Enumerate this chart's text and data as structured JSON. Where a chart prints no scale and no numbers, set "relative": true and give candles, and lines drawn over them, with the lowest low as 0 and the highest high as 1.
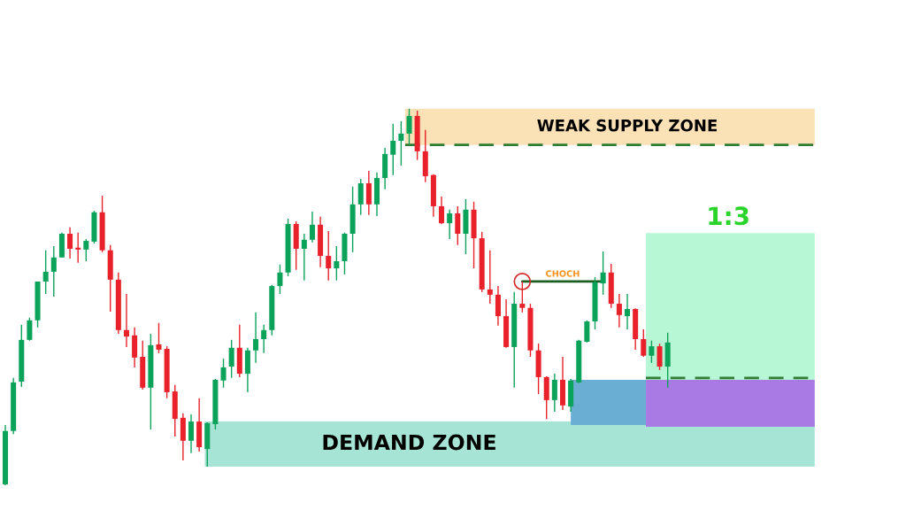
{
  "chart_data": {
    "type": "candlestick",
    "relative": true,
    "categories": [
      null,
      null,
      null,
      null,
      null,
      null,
      null,
      null,
      null,
      null,
      null,
      null,
      null,
      null,
      null,
      null,
      null,
      null,
      null,
      null,
      null,
      null,
      null,
      null,
      null,
      null,
      null,
      null,
      null,
      null,
      null,
      null,
      null,
      null,
      null,
      null,
      null,
      null,
      null,
      null,
      null,
      null,
      null,
      null,
      null,
      null,
      null,
      null,
      null,
      null,
      null,
      null,
      null,
      null,
      null,
      null,
      null,
      null,
      null,
      null,
      null,
      null,
      null,
      null,
      null,
      null,
      null,
      null,
      null,
      null,
      null,
      null,
      null,
      null,
      null,
      null,
      null,
      null,
      null,
      null,
      null,
      null,
      null,
      null,
      null,
      null,
      null,
      null,
      null,
      null,
      null,
      null,
      null,
      null,
      null,
      null,
      null,
      null,
      null,
      null,
      null
    ],
    "ohlc": [
      [
        0.002,
        0.16,
        0.0,
        0.144
      ],
      [
        0.144,
        0.285,
        0.136,
        0.273
      ],
      [
        0.275,
        0.426,
        0.261,
        0.386
      ],
      [
        0.386,
        0.445,
        0.384,
        0.438
      ],
      [
        0.438,
        0.541,
        0.419,
        0.541
      ],
      [
        0.541,
        0.624,
        0.508,
        0.567
      ],
      [
        0.567,
        0.635,
        0.501,
        0.605
      ],
      [
        0.605,
        0.671,
        0.605,
        0.668
      ],
      [
        0.668,
        0.685,
        0.602,
        0.628
      ],
      [
        0.631,
        0.671,
        0.591,
        0.626
      ],
      [
        0.626,
        0.654,
        0.595,
        0.649
      ],
      [
        0.647,
        0.729,
        0.642,
        0.725
      ],
      [
        0.725,
        0.769,
        0.619,
        0.624
      ],
      [
        0.624,
        0.638,
        0.461,
        0.546
      ],
      [
        0.546,
        0.565,
        0.402,
        0.412
      ],
      [
        0.412,
        0.508,
        0.367,
        0.395
      ],
      [
        0.398,
        0.419,
        0.313,
        0.339
      ],
      [
        0.341,
        0.384,
        0.254,
        0.259
      ],
      [
        0.259,
        0.402,
        0.148,
        0.372
      ],
      [
        0.374,
        0.431,
        0.351,
        0.36
      ],
      [
        0.362,
        0.369,
        0.231,
        0.247
      ],
      [
        0.249,
        0.266,
        0.129,
        0.176
      ],
      [
        0.179,
        0.191,
        0.066,
        0.118
      ],
      [
        0.118,
        0.188,
        0.085,
        0.169
      ],
      [
        0.169,
        0.231,
        0.089,
        0.101
      ],
      [
        0.096,
        0.167,
        0.049,
        0.165
      ],
      [
        0.162,
        0.282,
        0.148,
        0.28
      ],
      [
        0.278,
        0.336,
        0.259,
        0.313
      ],
      [
        0.315,
        0.386,
        0.285,
        0.365
      ],
      [
        0.365,
        0.426,
        0.287,
        0.296
      ],
      [
        0.296,
        0.365,
        0.247,
        0.358
      ],
      [
        0.358,
        0.459,
        0.325,
        0.388
      ],
      [
        0.388,
        0.426,
        0.351,
        0.412
      ],
      [
        0.412,
        0.532,
        0.398,
        0.529
      ],
      [
        0.529,
        0.586,
        0.508,
        0.565
      ],
      [
        0.565,
        0.708,
        0.555,
        0.694
      ],
      [
        0.694,
        0.701,
        0.572,
        0.628
      ],
      [
        0.628,
        0.668,
        0.544,
        0.652
      ],
      [
        0.652,
        0.727,
        0.645,
        0.692
      ],
      [
        0.692,
        0.713,
        0.579,
        0.609
      ],
      [
        0.609,
        0.675,
        0.544,
        0.576
      ],
      [
        0.576,
        0.635,
        0.544,
        0.595
      ],
      [
        0.595,
        0.671,
        0.56,
        0.668
      ],
      [
        0.668,
        0.793,
        0.619,
        0.746
      ],
      [
        0.746,
        0.814,
        0.718,
        0.802
      ],
      [
        0.802,
        0.835,
        0.718,
        0.746
      ],
      [
        0.746,
        0.831,
        0.715,
        0.816
      ],
      [
        0.816,
        0.896,
        0.786,
        0.88
      ],
      [
        0.878,
        0.96,
        0.824,
        0.915
      ],
      [
        0.915,
        0.967,
        0.849,
        0.934
      ],
      [
        0.934,
        1.0,
        0.906,
        0.981
      ],
      [
        0.981,
        0.995,
        0.864,
        0.887
      ],
      [
        0.887,
        0.944,
        0.805,
        0.821
      ],
      [
        0.824,
        0.826,
        0.713,
        0.741
      ],
      [
        0.741,
        0.767,
        0.694,
        0.696
      ],
      [
        0.696,
        0.732,
        0.654,
        0.722
      ],
      [
        0.722,
        0.741,
        0.638,
        0.668
      ],
      [
        0.668,
        0.76,
        0.614,
        0.732
      ],
      [
        0.732,
        0.753,
        0.576,
        0.656
      ],
      [
        0.656,
        0.673,
        0.513,
        0.52
      ],
      [
        0.52,
        0.624,
        0.482,
        0.506
      ],
      [
        0.506,
        0.529,
        0.424,
        0.449
      ],
      [
        0.449,
        0.494,
        0.365,
        0.367
      ],
      [
        0.367,
        0.513,
        0.259,
        0.482
      ],
      [
        0.482,
        0.541,
        0.459,
        0.471
      ],
      [
        0.471,
        0.482,
        0.341,
        0.358
      ],
      [
        0.358,
        0.376,
        0.242,
        0.287
      ],
      [
        0.287,
        0.289,
        0.176,
        0.226
      ],
      [
        0.226,
        0.296,
        0.195,
        0.28
      ],
      [
        0.28,
        0.341,
        0.2,
        0.212
      ],
      [
        0.209,
        0.282,
        0.195,
        0.278
      ],
      [
        0.273,
        0.386,
        0.271,
        0.384
      ],
      [
        0.381,
        0.438,
        0.379,
        0.435
      ],
      [
        0.435,
        0.553,
        0.414,
        0.539
      ],
      [
        0.536,
        0.621,
        0.506,
        0.565
      ],
      [
        0.565,
        0.588,
        0.471,
        0.482
      ],
      [
        0.482,
        0.508,
        0.419,
        0.452
      ],
      [
        0.449,
        0.508,
        0.414,
        0.468
      ],
      [
        0.468,
        0.47,
        0.36,
        0.388
      ],
      [
        0.388,
        0.414,
        0.341,
        0.344
      ],
      [
        0.344,
        0.384,
        0.325,
        0.369
      ],
      [
        0.369,
        0.376,
        0.306,
        0.315
      ],
      [
        0.315,
        0.405,
        0.259,
        0.379
      ],
      null,
      null,
      null,
      null,
      null,
      null,
      null,
      null,
      null,
      null,
      null,
      null,
      null,
      null,
      null,
      null,
      null,
      null
    ],
    "bands": [
      {
        "axis": "y",
        "from": 0.904,
        "to": 1.0,
        "label": "WEAK SUPPLY ZONE",
        "color": "#fbe1b6"
      },
      {
        "axis": "y",
        "from": 0.049,
        "to": 0.169,
        "label": "DEMAND ZONE",
        "color": "#a6e5d6"
      },
      {
        "axis": "y",
        "from": 0.16,
        "to": 0.28,
        "color": "#6aaed3"
      },
      {
        "axis": "y",
        "from": 0.28,
        "to": 0.67,
        "label": "1:3",
        "color": "#b8f7d5"
      },
      {
        "axis": "y",
        "from": 0.155,
        "to": 0.28,
        "color": "#a97ae3"
      }
    ],
    "ref_lines": [
      {
        "axis": "y",
        "value": 0.904,
        "color": "#2e7d32",
        "line_style": "dashed"
      },
      {
        "axis": "y",
        "value": 0.285,
        "color": "#2e7d32",
        "line_style": "dashed"
      },
      {
        "axis": "y",
        "value": 0.541,
        "label": "CHOCH",
        "color": "#1b5e20",
        "line_style": "solid"
      }
    ]
  }
}
